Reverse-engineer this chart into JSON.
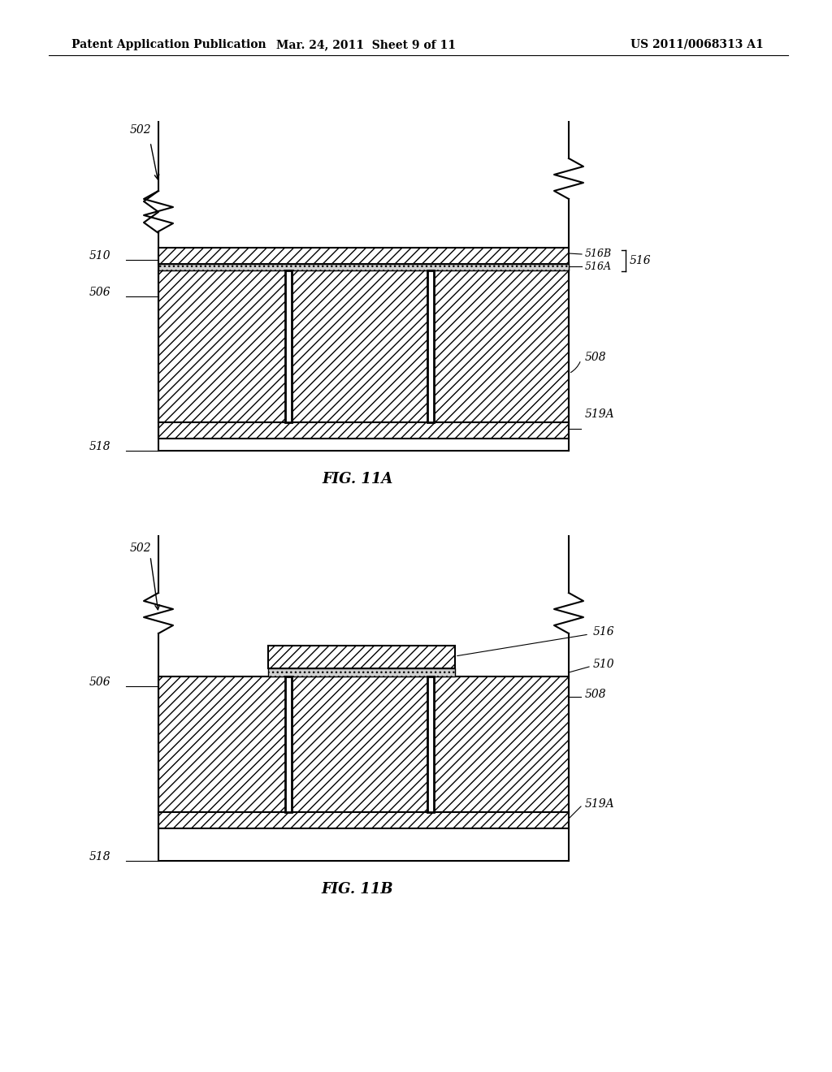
{
  "background_color": "#ffffff",
  "header_left": "Patent Application Publication",
  "header_mid": "Mar. 24, 2011  Sheet 9 of 11",
  "header_right": "US 2011/0068313 A1",
  "fig_a_label": "FIG. 11A",
  "fig_b_label": "FIG. 11B",
  "line_color": "#000000"
}
